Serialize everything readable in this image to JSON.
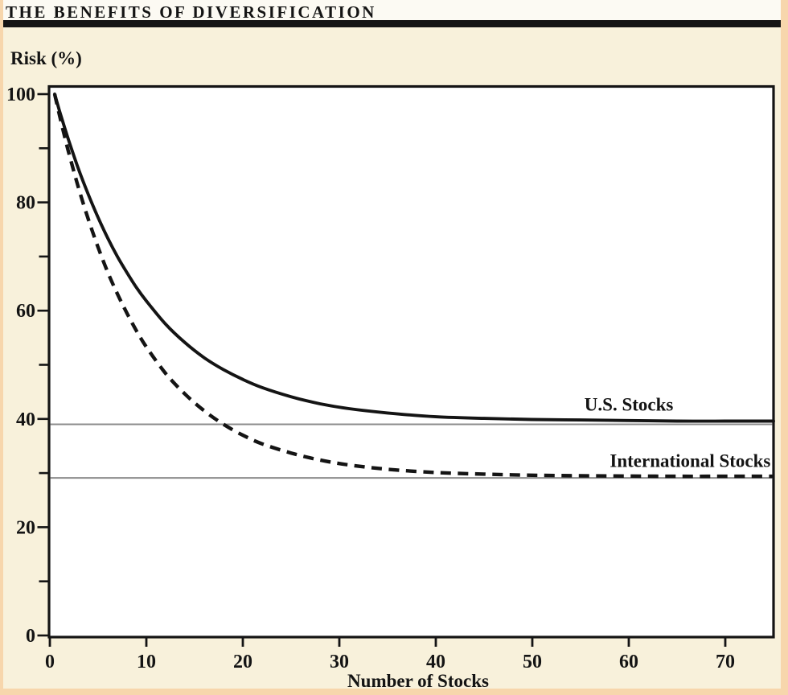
{
  "page": {
    "title": "THE BENEFITS OF DIVERSIFICATION"
  },
  "chart_data": {
    "type": "line",
    "title": "THE BENEFITS OF DIVERSIFICATION",
    "xlabel": "Number of Stocks",
    "ylabel": "Risk (%)",
    "xlim": [
      0,
      75
    ],
    "ylim": [
      0,
      100
    ],
    "grid": "off",
    "legend_position": "inline-labels",
    "x_ticks": [
      0,
      10,
      20,
      30,
      40,
      50,
      60,
      70
    ],
    "y_ticks_labeled": [
      0,
      20,
      40,
      60,
      80,
      100
    ],
    "y_ticks_minor": [
      10,
      30,
      50,
      70,
      90
    ],
    "reference_lines": [
      {
        "id": "us-asymptote-line",
        "y": 39.0
      },
      {
        "id": "international-asymptote-line",
        "y": 29.1
      }
    ],
    "series": [
      {
        "id": "us-stocks",
        "name": "U.S. Stocks",
        "style": "solid",
        "asymptote": 39.5,
        "label": {
          "text": "U.S. Stocks",
          "x": 55.4,
          "y": 41.5,
          "anchor": "start"
        },
        "points": [
          [
            0.5,
            100
          ],
          [
            1,
            96.9
          ],
          [
            1.5,
            94.0
          ],
          [
            2,
            91.2
          ],
          [
            3,
            86.0
          ],
          [
            4,
            81.4
          ],
          [
            5,
            77.2
          ],
          [
            6,
            73.4
          ],
          [
            7,
            70.0
          ],
          [
            8,
            67.0
          ],
          [
            9,
            64.2
          ],
          [
            10,
            61.8
          ],
          [
            12,
            57.5
          ],
          [
            14,
            54.1
          ],
          [
            16,
            51.3
          ],
          [
            18,
            49.1
          ],
          [
            20,
            47.3
          ],
          [
            22,
            45.8
          ],
          [
            25,
            44.1
          ],
          [
            28,
            42.8
          ],
          [
            31,
            41.9
          ],
          [
            35,
            41.1
          ],
          [
            40,
            40.4
          ],
          [
            45,
            40.1
          ],
          [
            50,
            39.9
          ],
          [
            55,
            39.8
          ],
          [
            60,
            39.7
          ],
          [
            65,
            39.6
          ],
          [
            70,
            39.6
          ],
          [
            75,
            39.6
          ]
        ]
      },
      {
        "id": "international-stocks",
        "name": "International Stocks",
        "style": "dashed",
        "asymptote": 29.3,
        "label": {
          "text": "International Stocks",
          "x": 74.7,
          "y": 31.1,
          "anchor": "end"
        },
        "points": [
          [
            0.5,
            100
          ],
          [
            1,
            96.1
          ],
          [
            1.5,
            92.4
          ],
          [
            2,
            88.9
          ],
          [
            3,
            82.5
          ],
          [
            4,
            76.8
          ],
          [
            5,
            71.7
          ],
          [
            6,
            67.1
          ],
          [
            7,
            63.1
          ],
          [
            8,
            59.5
          ],
          [
            9,
            56.2
          ],
          [
            10,
            53.3
          ],
          [
            12,
            48.4
          ],
          [
            14,
            44.6
          ],
          [
            16,
            41.5
          ],
          [
            18,
            39.0
          ],
          [
            20,
            37.0
          ],
          [
            22,
            35.4
          ],
          [
            25,
            33.7
          ],
          [
            28,
            32.4
          ],
          [
            31,
            31.5
          ],
          [
            35,
            30.7
          ],
          [
            40,
            30.1
          ],
          [
            45,
            29.8
          ],
          [
            50,
            29.6
          ],
          [
            55,
            29.5
          ],
          [
            60,
            29.45
          ],
          [
            65,
            29.4
          ],
          [
            70,
            29.4
          ],
          [
            75,
            29.4
          ]
        ]
      }
    ]
  },
  "colors": {
    "frame": "#F7D6AC",
    "page_bg": "#F8F1DB",
    "title_band": "#FCFAF3",
    "title_rule": "#141414",
    "ink": "#141414",
    "plot_bg": "#FFFFFF",
    "reference_line": "#8C8C8C"
  }
}
